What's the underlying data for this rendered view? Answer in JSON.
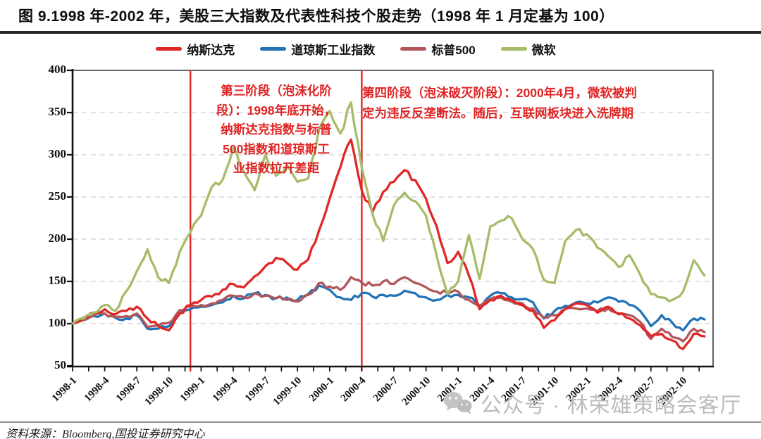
{
  "title": "图 9.1998 年-2002 年，美股三大指数及代表性科技个股走势（1998 年 1 月定基为 100）",
  "legend": [
    {
      "id": "nasdaq",
      "label": "纳斯达克",
      "color": "#e12726"
    },
    {
      "id": "dow-jones",
      "label": "道琼斯工业指数",
      "color": "#2273b6"
    },
    {
      "id": "sp500",
      "label": "标普500",
      "color": "#b2565a"
    },
    {
      "id": "microsoft",
      "label": "微软",
      "color": "#a6bc68"
    }
  ],
  "annotations": {
    "stage3": {
      "text": "第三阶段（泡沫化阶\n段）：1998年底开始，\n纳斯达克指数与标普\n500指数和道琼斯工\n业指数拉开差距",
      "color": "#e02424"
    },
    "stage4": {
      "text": "第四阶段（泡沫破灭阶段）：2000年4月，微软被判\n定为违反反垄断法。随后，互联网板块进入洗牌期",
      "color": "#e02424"
    }
  },
  "watermark": {
    "text": "公众号 · 林荣雄策略会客厅",
    "icon": "wechat-icon",
    "color": "#bcbcbc"
  },
  "footer": {
    "text": "资料来源：Bloomberg,国投证券研究中心"
  },
  "chart_data": {
    "type": "line",
    "title": "美股三大指数及代表性科技个股走势（1998年1月定基为100）",
    "x_unit": "year-month",
    "ylim": [
      50,
      400
    ],
    "yticks": [
      50,
      100,
      150,
      200,
      250,
      300,
      350,
      400
    ],
    "grid": "dashed horizontal",
    "legend_position": "top",
    "x": [
      "1998-1",
      "1998-2",
      "1998-3",
      "1998-4",
      "1998-5",
      "1998-6",
      "1998-7",
      "1998-8",
      "1998-9",
      "1998-10",
      "1998-11",
      "1998-12",
      "1999-1",
      "1999-2",
      "1999-3",
      "1999-4",
      "1999-5",
      "1999-6",
      "1999-7",
      "1999-8",
      "1999-9",
      "1999-10",
      "1999-11",
      "1999-12",
      "2000-1",
      "2000-2",
      "2000-3",
      "2000-4",
      "2000-5",
      "2000-6",
      "2000-7",
      "2000-8",
      "2000-9",
      "2000-10",
      "2000-11",
      "2000-12",
      "2001-1",
      "2001-2",
      "2001-3",
      "2001-4",
      "2001-5",
      "2001-6",
      "2001-7",
      "2001-8",
      "2001-9",
      "2001-10",
      "2001-11",
      "2001-12",
      "2002-1",
      "2002-2",
      "2002-3",
      "2002-4",
      "2002-5",
      "2002-6",
      "2002-7",
      "2002-8",
      "2002-9",
      "2002-10",
      "2002-11",
      "2002-12"
    ],
    "x_tick_labels": [
      "1998-1",
      "1998-4",
      "1998-7",
      "1998-10",
      "1999-1",
      "1999-4",
      "1999-7",
      "1999-10",
      "2000-1",
      "2000-4",
      "2000-7",
      "2000-10",
      "2001-1",
      "2001-4",
      "2001-7",
      "2001-10",
      "2002-1",
      "2002-4",
      "2002-7",
      "2002-10"
    ],
    "series": [
      {
        "name": "纳斯达克",
        "color": "#e12726",
        "values": [
          100,
          107,
          113,
          117,
          111,
          115,
          120,
          106,
          97,
          92,
          112,
          122,
          128,
          132,
          140,
          147,
          143,
          156,
          168,
          178,
          172,
          164,
          176,
          210,
          248,
          285,
          318,
          258,
          232,
          256,
          268,
          282,
          270,
          248,
          215,
          172,
          185,
          157,
          117,
          128,
          133,
          128,
          122,
          115,
          95,
          104,
          118,
          124,
          122,
          113,
          120,
          112,
          106,
          98,
          85,
          88,
          80,
          70,
          88,
          85
        ]
      },
      {
        "name": "道琼斯工业指数",
        "color": "#2273b6",
        "values": [
          100,
          104,
          109,
          112,
          107,
          106,
          110,
          94,
          94,
          97,
          112,
          117,
          120,
          122,
          125,
          133,
          130,
          136,
          134,
          130,
          131,
          128,
          135,
          145,
          140,
          131,
          128,
          136,
          132,
          134,
          133,
          139,
          136,
          131,
          128,
          134,
          134,
          131,
          121,
          133,
          136,
          131,
          129,
          125,
          106,
          115,
          121,
          125,
          124,
          125,
          131,
          126,
          122,
          115,
          97,
          110,
          101,
          92,
          106,
          105
        ]
      },
      {
        "name": "标普500",
        "color": "#b2565a",
        "values": [
          100,
          104,
          110,
          112,
          108,
          109,
          112,
          96,
          98,
          101,
          116,
          120,
          122,
          124,
          128,
          133,
          131,
          136,
          133,
          130,
          128,
          126,
          134,
          148,
          144,
          140,
          155,
          149,
          145,
          150,
          147,
          155,
          148,
          143,
          138,
          136,
          138,
          128,
          120,
          129,
          131,
          126,
          124,
          118,
          107,
          110,
          117,
          118,
          118,
          115,
          118,
          111,
          110,
          102,
          82,
          94,
          84,
          79,
          94,
          90
        ]
      },
      {
        "name": "微软",
        "color": "#a6bc68",
        "values": [
          100,
          106,
          113,
          122,
          115,
          138,
          162,
          188,
          155,
          148,
          185,
          208,
          228,
          262,
          270,
          308,
          280,
          258,
          300,
          275,
          288,
          268,
          272,
          330,
          352,
          325,
          362,
          285,
          230,
          198,
          240,
          255,
          245,
          228,
          180,
          135,
          150,
          205,
          153,
          215,
          222,
          225,
          200,
          188,
          152,
          148,
          198,
          211,
          206,
          190,
          180,
          167,
          181,
          158,
          135,
          131,
          128,
          138,
          175,
          157
        ]
      }
    ],
    "vlines": [
      {
        "month": "1998-12",
        "color": "#e12726",
        "meaning": "第三阶段起点（1998年底）"
      },
      {
        "month": "2000-4",
        "color": "#e12726",
        "meaning": "第四阶段起点（2000年4月）"
      }
    ]
  }
}
